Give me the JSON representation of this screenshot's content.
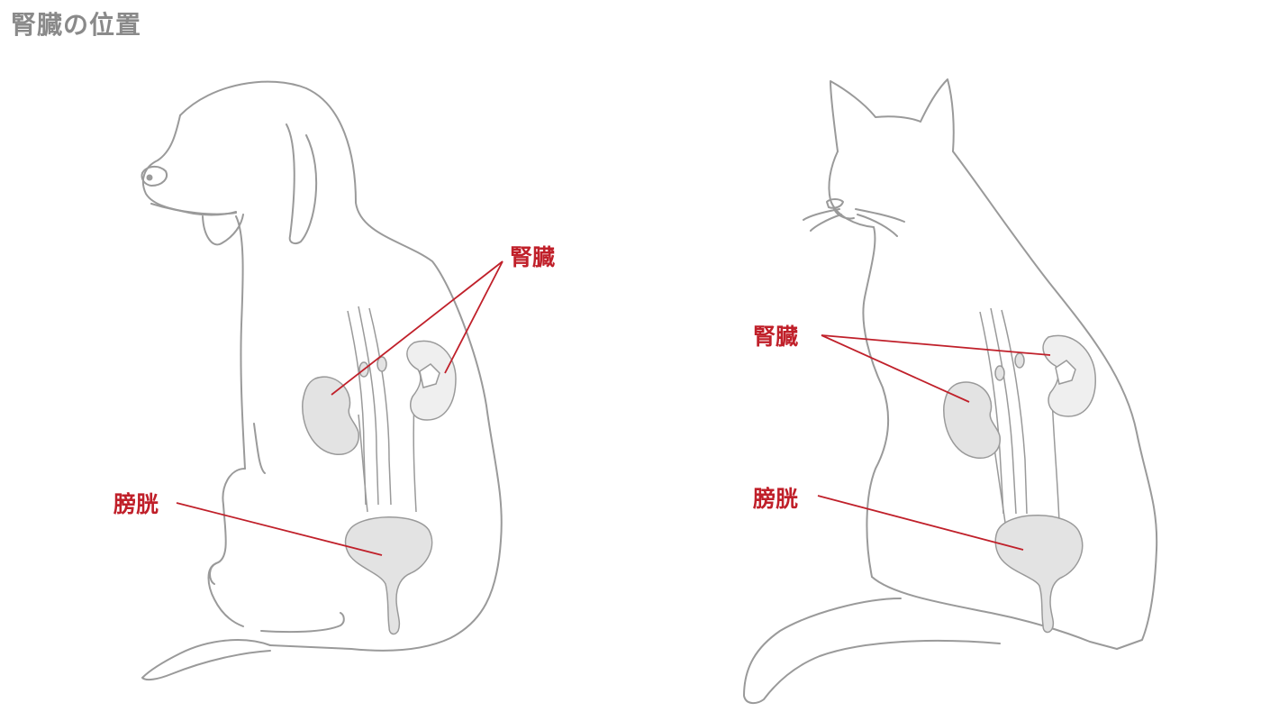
{
  "page": {
    "title": "腎臓の位置"
  },
  "colors": {
    "accent": "#c0202a",
    "outline": "#9a9a9a",
    "organ_fill": "#e3e3e3",
    "title": "#8a8a8a"
  },
  "dog": {
    "kidney_label": "腎臓",
    "bladder_label": "膀胱"
  },
  "cat": {
    "kidney_label": "腎臓",
    "bladder_label": "膀胱"
  }
}
